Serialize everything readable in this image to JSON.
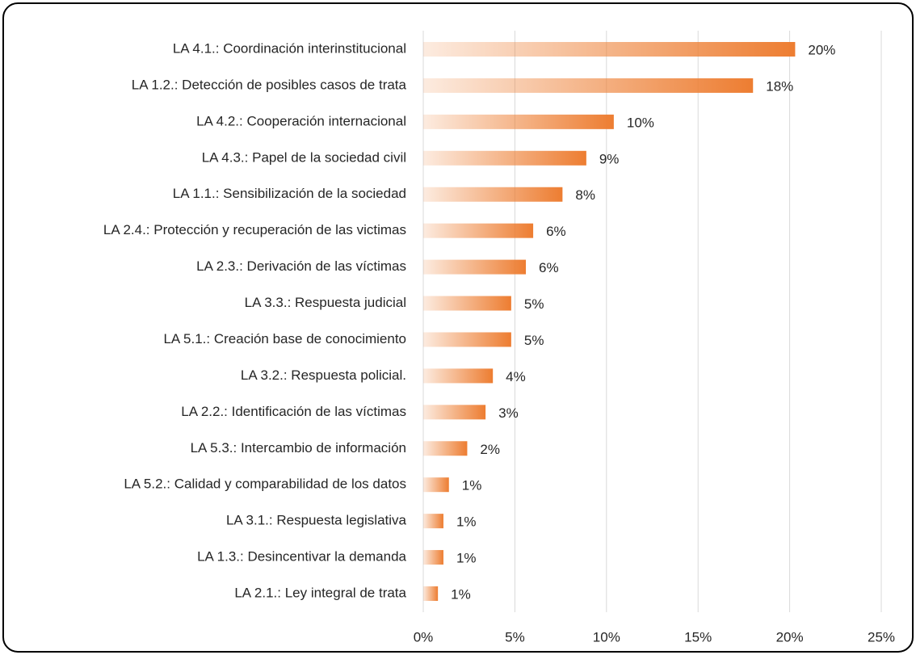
{
  "chart_data": {
    "type": "bar",
    "orientation": "horizontal",
    "color": "#ed7d31",
    "grid": true,
    "categories": [
      "LA 4.1.: Coordinación interinstitucional",
      "LA 1.2.: Detección de posibles casos de trata",
      "LA 4.2.: Cooperación internacional",
      "LA 4.3.: Papel de la sociedad civil",
      "LA 1.1.: Sensibilización de la sociedad",
      "LA 2.4.: Protección y recuperación de las victimas",
      "LA 2.3.: Derivación de las víctimas",
      "LA 3.3.: Respuesta judicial",
      "LA 5.1.: Creación base de conocimiento",
      "LA 3.2.: Respuesta policial.",
      "LA 2.2.: Identificación de las víctimas",
      "LA 5.3.: Intercambio de información",
      "LA 5.2.: Calidad y comparabilidad de los datos",
      "LA 3.1.: Respuesta legislativa",
      "LA 1.3.: Desincentivar la demanda",
      "LA 2.1.: Ley integral de trata"
    ],
    "values": [
      20.3,
      18.0,
      10.4,
      8.9,
      7.6,
      6.0,
      5.6,
      4.8,
      4.8,
      3.8,
      3.4,
      2.4,
      1.4,
      1.1,
      1.1,
      0.8
    ],
    "value_labels": [
      "20%",
      "18%",
      "10%",
      "9%",
      "8%",
      "6%",
      "6%",
      "5%",
      "5%",
      "4%",
      "3%",
      "2%",
      "1%",
      "1%",
      "1%",
      "1%"
    ],
    "xlim": [
      0,
      25
    ],
    "xticks": [
      {
        "value": 0,
        "label": "0%"
      },
      {
        "value": 5,
        "label": "5%"
      },
      {
        "value": 10,
        "label": "10%"
      },
      {
        "value": 15,
        "label": "15%"
      },
      {
        "value": 20,
        "label": "20%"
      },
      {
        "value": 25,
        "label": "25%"
      }
    ]
  }
}
